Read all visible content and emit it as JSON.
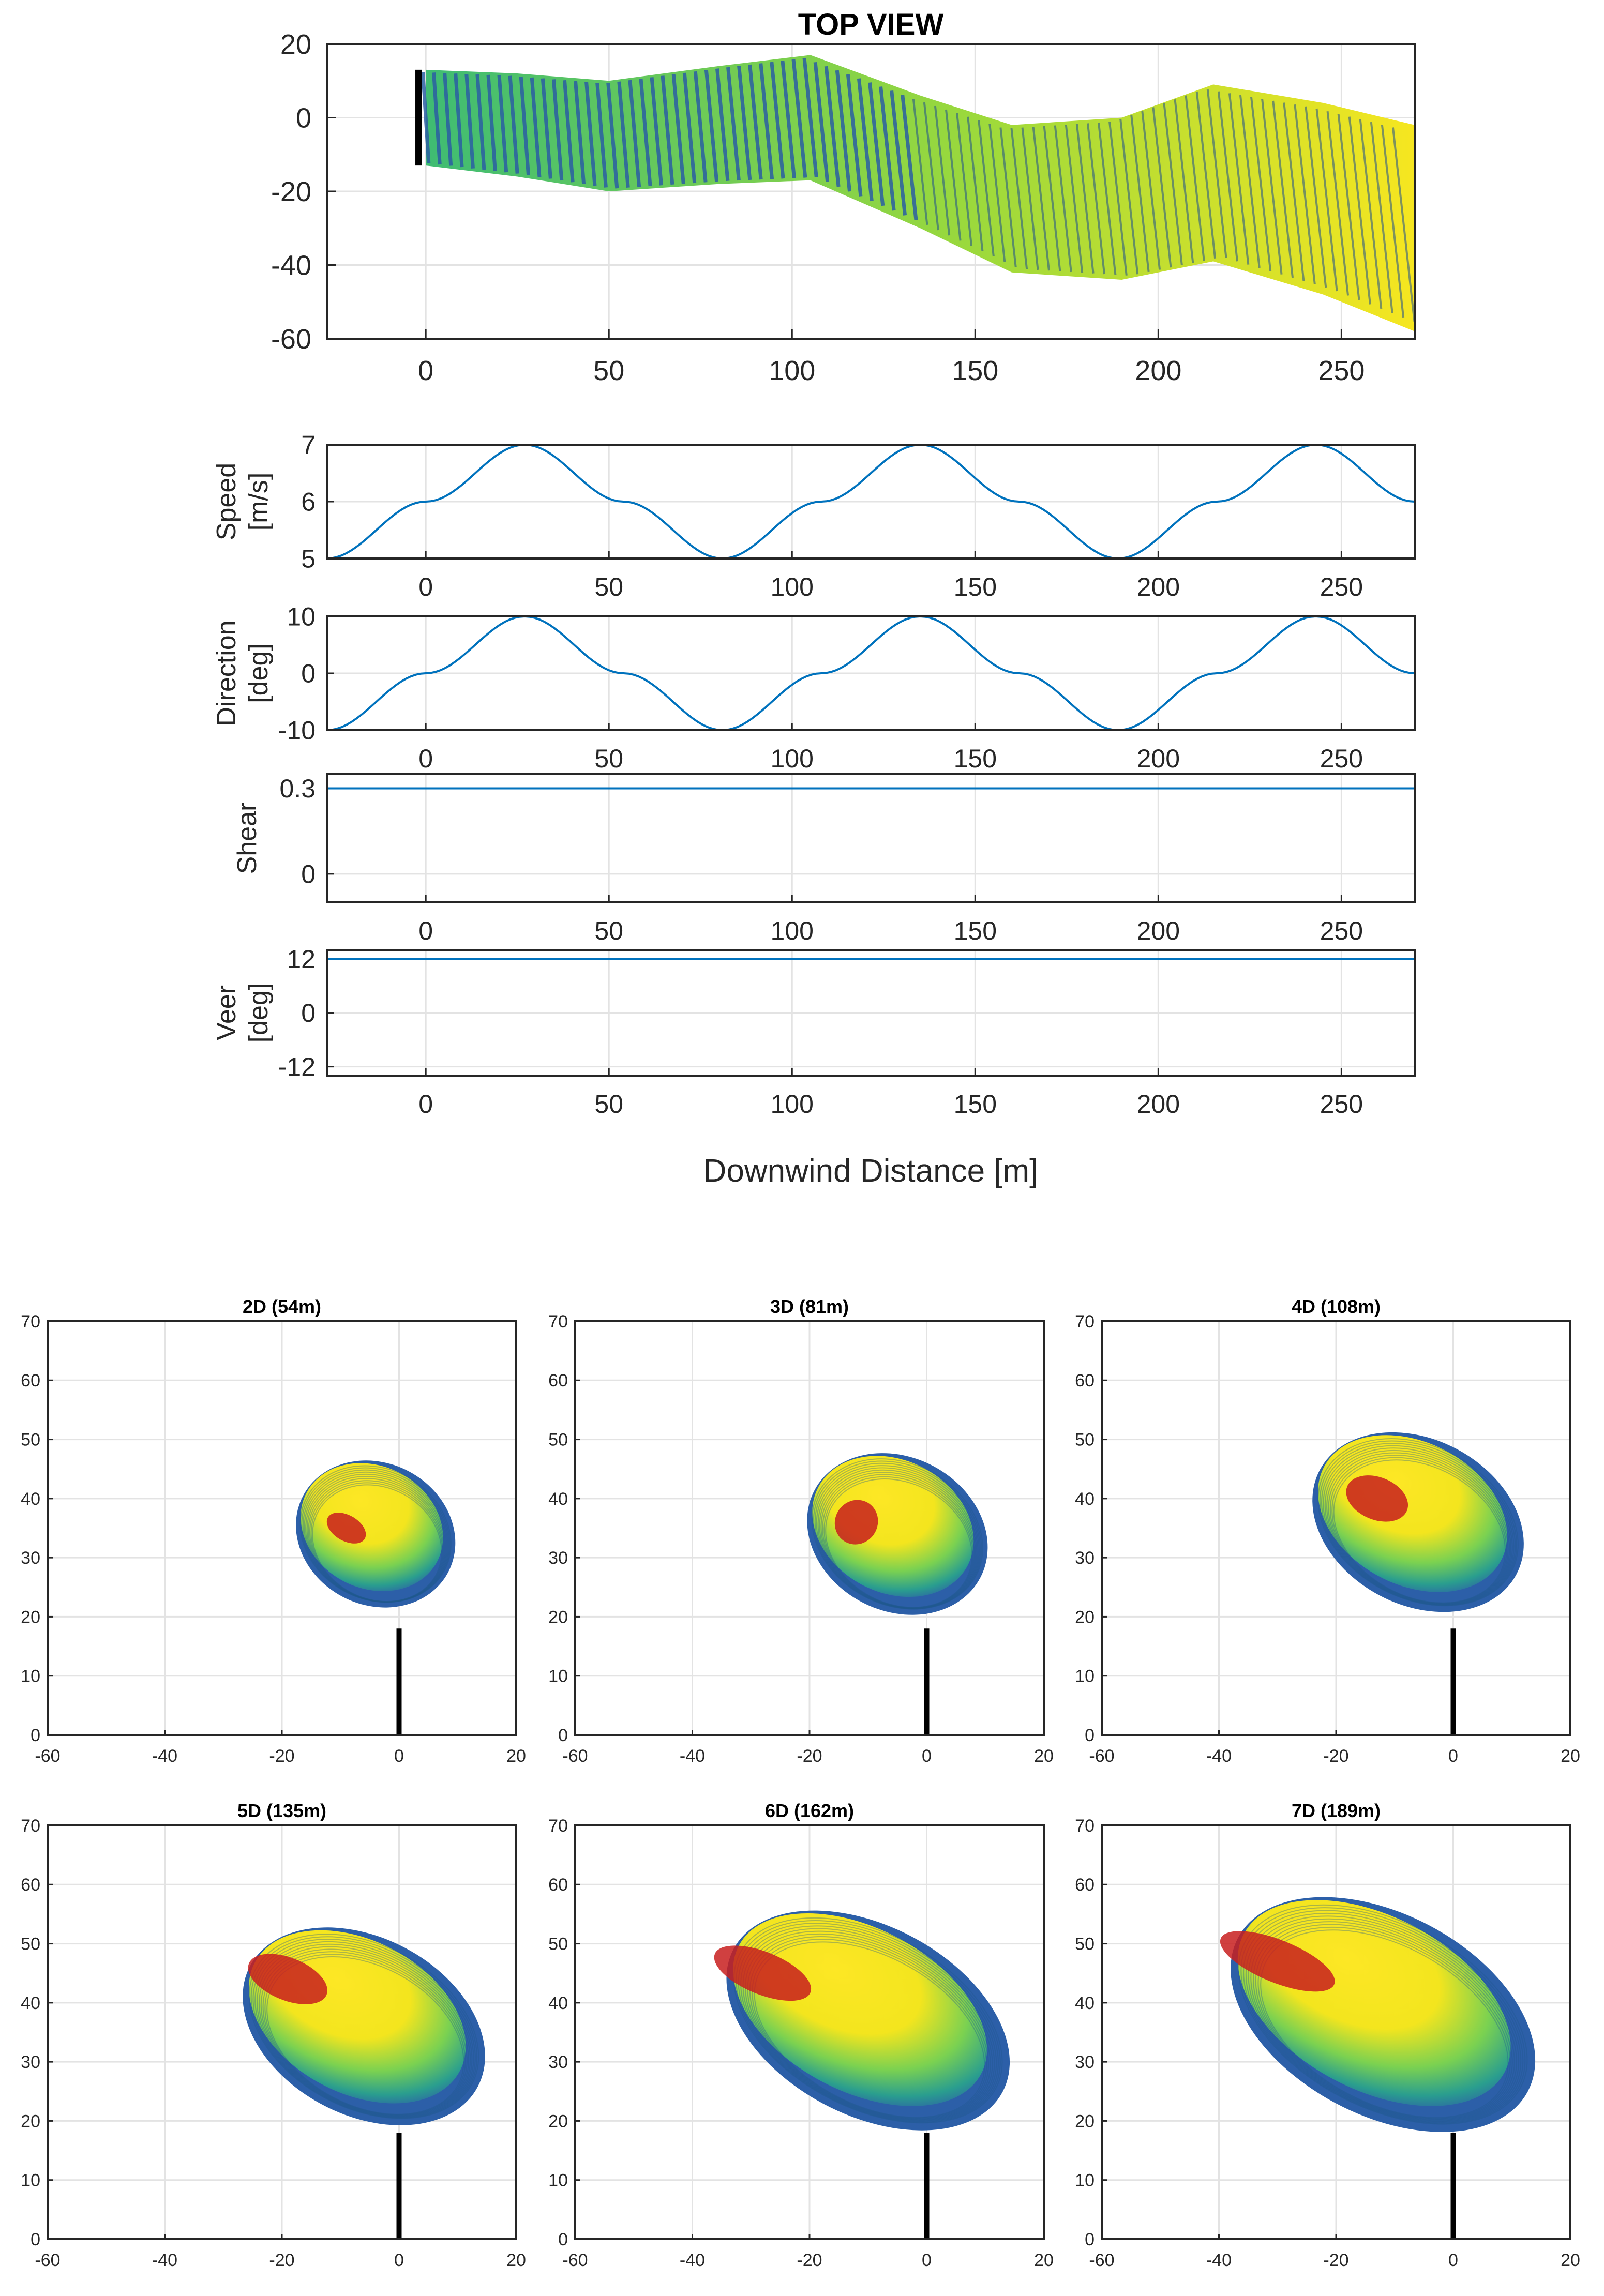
{
  "chart_data": [
    {
      "id": "top",
      "type": "other",
      "title": "TOP VIEW",
      "xlim": [
        -27,
        270
      ],
      "ylim": [
        -60,
        20
      ],
      "xticks": [
        0,
        50,
        100,
        150,
        200,
        250
      ],
      "yticks": [
        20,
        0,
        -20,
        -40,
        -60
      ],
      "description_series": "wake centerline lateral offset vs downwind distance",
      "center_x": [
        0,
        25,
        50,
        80,
        105,
        135,
        160,
        190,
        215,
        245,
        270
      ],
      "center_y": [
        0,
        -2,
        -5,
        -2,
        0,
        -12,
        -22,
        -22,
        -15,
        -22,
        -30
      ],
      "half_width": [
        13,
        14,
        15,
        16,
        17,
        18,
        20,
        22,
        24,
        26,
        28
      ]
    },
    {
      "id": "speed",
      "type": "line",
      "ylabel": "Speed\n[m/s]",
      "xlim": [
        -27,
        270
      ],
      "ylim": [
        5,
        7
      ],
      "xticks": [
        0,
        50,
        100,
        150,
        200,
        250
      ],
      "yticks": [
        7,
        6,
        5
      ],
      "x": [
        -27,
        0,
        27,
        54,
        81,
        108,
        135,
        162,
        189,
        216,
        243,
        270
      ],
      "y": [
        5,
        6,
        7,
        6,
        5,
        6,
        7,
        6,
        5,
        6,
        7,
        6
      ]
    },
    {
      "id": "direction",
      "type": "line",
      "ylabel": "Direction\n[deg]",
      "xlim": [
        -27,
        270
      ],
      "ylim": [
        -10,
        10
      ],
      "xticks": [
        0,
        50,
        100,
        150,
        200,
        250
      ],
      "yticks": [
        10,
        0,
        -10
      ],
      "x": [
        -27,
        0,
        27,
        54,
        81,
        108,
        135,
        162,
        189,
        216,
        243,
        270
      ],
      "y": [
        -10,
        0,
        10,
        0,
        -10,
        0,
        10,
        0,
        -10,
        0,
        10,
        0
      ]
    },
    {
      "id": "shear",
      "type": "line",
      "ylabel": "Shear",
      "xlim": [
        -27,
        270
      ],
      "ylim": [
        -0.1,
        0.35
      ],
      "xticks": [
        0,
        50,
        100,
        150,
        200,
        250
      ],
      "yticks": [
        0.3,
        0
      ],
      "x": [
        -27,
        270
      ],
      "y": [
        0.3,
        0.3
      ]
    },
    {
      "id": "veer",
      "type": "line",
      "ylabel": "Veer\n[deg]",
      "xlabel": "Downwind Distance [m]",
      "xlim": [
        -27,
        270
      ],
      "ylim": [
        -14,
        14
      ],
      "xticks": [
        0,
        50,
        100,
        150,
        200,
        250
      ],
      "yticks": [
        12,
        0,
        -12
      ],
      "x": [
        -27,
        270
      ],
      "y": [
        12,
        12
      ]
    },
    {
      "id": "cs2",
      "type": "other",
      "title": "2D (54m)",
      "xlim": [
        -60,
        20
      ],
      "ylim": [
        0,
        70
      ],
      "xticks": [
        -60,
        -40,
        -20,
        0,
        20
      ],
      "yticks": [
        70,
        60,
        50,
        40,
        30,
        20,
        10,
        0
      ],
      "wake_center": [
        -4,
        34
      ],
      "wake_radii": [
        14,
        12
      ],
      "core_center": [
        -9,
        35
      ]
    },
    {
      "id": "cs3",
      "type": "other",
      "title": "3D (81m)",
      "xlim": [
        -60,
        20
      ],
      "ylim": [
        0,
        70
      ],
      "xticks": [
        -60,
        -40,
        -20,
        0,
        20
      ],
      "yticks": [
        70,
        60,
        50,
        40,
        30,
        20,
        10,
        0
      ],
      "wake_center": [
        -5,
        34
      ],
      "wake_radii": [
        16,
        13
      ],
      "core_center": [
        -12,
        36
      ]
    },
    {
      "id": "cs4",
      "type": "other",
      "title": "4D (108m)",
      "xlim": [
        -60,
        20
      ],
      "ylim": [
        0,
        70
      ],
      "xticks": [
        -60,
        -40,
        -20,
        0,
        20
      ],
      "yticks": [
        70,
        60,
        50,
        40,
        30,
        20,
        10,
        0
      ],
      "wake_center": [
        -6,
        36
      ],
      "wake_radii": [
        19,
        14
      ],
      "core_center": [
        -13,
        40
      ]
    },
    {
      "id": "cs5",
      "type": "other",
      "title": "5D (135m)",
      "xlim": [
        -60,
        20
      ],
      "ylim": [
        0,
        70
      ],
      "xticks": [
        -60,
        -40,
        -20,
        0,
        20
      ],
      "yticks": [
        70,
        60,
        50,
        40,
        30,
        20,
        10,
        0
      ],
      "wake_center": [
        -6,
        36
      ],
      "wake_radii": [
        22,
        15
      ],
      "core_center": [
        -19,
        44
      ]
    },
    {
      "id": "cs6",
      "type": "other",
      "title": "6D (162m)",
      "xlim": [
        -60,
        20
      ],
      "ylim": [
        0,
        70
      ],
      "xticks": [
        -60,
        -40,
        -20,
        0,
        20
      ],
      "yticks": [
        70,
        60,
        50,
        40,
        30,
        20,
        10,
        0
      ],
      "wake_center": [
        -10,
        37
      ],
      "wake_radii": [
        26,
        16
      ],
      "core_center": [
        -28,
        45
      ]
    },
    {
      "id": "cs7",
      "type": "other",
      "title": "7D (189m)",
      "xlim": [
        -60,
        20
      ],
      "ylim": [
        0,
        70
      ],
      "xticks": [
        -60,
        -40,
        -20,
        0,
        20
      ],
      "yticks": [
        70,
        60,
        50,
        40,
        30,
        20,
        10,
        0
      ],
      "wake_center": [
        -12,
        38
      ],
      "wake_radii": [
        28,
        17
      ],
      "core_center": [
        -30,
        47
      ]
    }
  ]
}
